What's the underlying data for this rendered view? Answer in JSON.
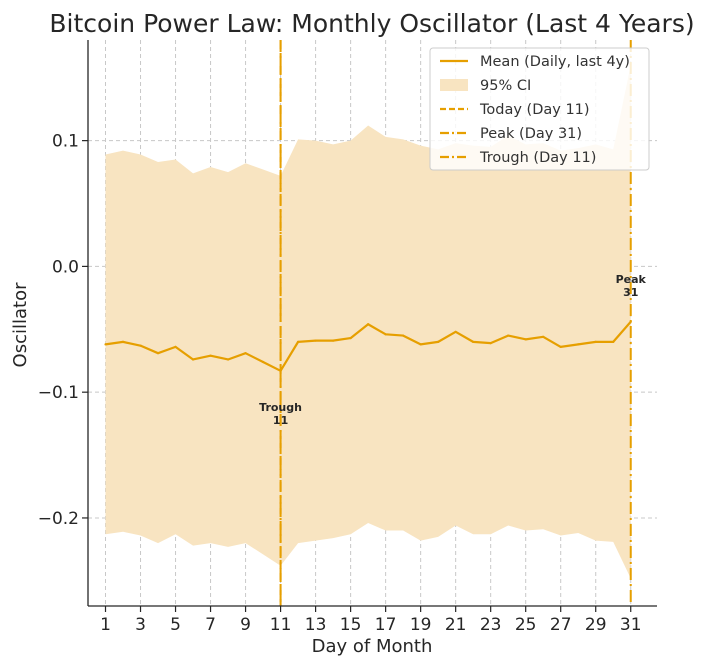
{
  "chart_data": {
    "type": "line",
    "title": "Bitcoin Power Law: Monthly Oscillator (Last 4 Years)",
    "xlabel": "Day of Month",
    "ylabel": "Oscillator",
    "xlim": [
      0,
      32.5
    ],
    "ylim": [
      -0.27,
      0.18
    ],
    "xticks": [
      1,
      3,
      5,
      7,
      9,
      11,
      13,
      15,
      17,
      19,
      21,
      23,
      25,
      27,
      29,
      31
    ],
    "yticks": [
      0.1,
      0.0,
      -0.1,
      -0.2
    ],
    "ytick_labels": [
      "0.1",
      "0.0",
      "−0.1",
      "−0.2"
    ],
    "grid": true,
    "legend_position": "top-right",
    "colors": {
      "mean": "#E69F00",
      "ci_fill": "#F8E4C1",
      "today": "#E69F00",
      "peak": "#E69F00",
      "trough": "#E69F00"
    },
    "x": [
      1,
      2,
      3,
      4,
      5,
      6,
      7,
      8,
      9,
      10,
      11,
      12,
      13,
      14,
      15,
      16,
      17,
      18,
      19,
      20,
      21,
      22,
      23,
      24,
      25,
      26,
      27,
      28,
      29,
      30,
      31
    ],
    "series": [
      {
        "name": "Mean (Daily, last 4y)",
        "values": [
          -0.062,
          -0.06,
          -0.063,
          -0.069,
          -0.064,
          -0.074,
          -0.071,
          -0.074,
          -0.069,
          -0.076,
          -0.083,
          -0.06,
          -0.059,
          -0.059,
          -0.057,
          -0.046,
          -0.054,
          -0.055,
          -0.062,
          -0.06,
          -0.052,
          -0.06,
          -0.061,
          -0.055,
          -0.058,
          -0.056,
          -0.064,
          -0.062,
          -0.06,
          -0.06,
          -0.044
        ]
      }
    ],
    "ci": {
      "name": "95% CI",
      "upper": [
        0.089,
        0.092,
        0.089,
        0.083,
        0.085,
        0.074,
        0.079,
        0.075,
        0.082,
        0.077,
        0.072,
        0.101,
        0.1,
        0.097,
        0.1,
        0.112,
        0.103,
        0.101,
        0.096,
        0.093,
        0.098,
        0.096,
        0.095,
        0.104,
        0.097,
        0.098,
        0.092,
        0.094,
        0.097,
        0.093,
        0.16
      ],
      "lower": [
        -0.213,
        -0.211,
        -0.214,
        -0.22,
        -0.213,
        -0.222,
        -0.22,
        -0.223,
        -0.22,
        -0.229,
        -0.238,
        -0.22,
        -0.218,
        -0.216,
        -0.213,
        -0.204,
        -0.21,
        -0.21,
        -0.218,
        -0.215,
        -0.206,
        -0.213,
        -0.213,
        -0.206,
        -0.21,
        -0.209,
        -0.214,
        -0.212,
        -0.218,
        -0.219,
        -0.248
      ]
    },
    "vlines": [
      {
        "name": "Today (Day 11)",
        "x": 11,
        "style": "dashed"
      },
      {
        "name": "Peak (Day 31)",
        "x": 31,
        "style": "dashdot"
      },
      {
        "name": "Trough (Day 11)",
        "x": 11,
        "style": "dashdot"
      }
    ],
    "annotations": [
      {
        "line1": "Trough",
        "line2": "11",
        "x": 11,
        "y": -0.115
      },
      {
        "line1": "Peak",
        "line2": "31",
        "x": 31,
        "y": -0.013
      }
    ]
  }
}
